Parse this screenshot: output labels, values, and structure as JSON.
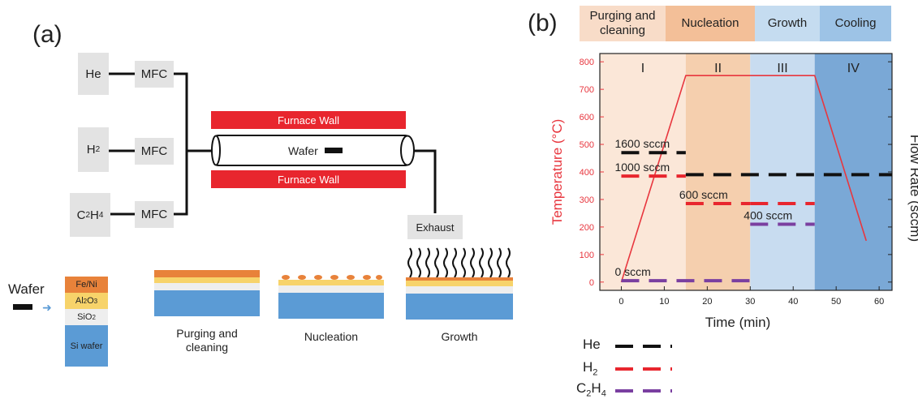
{
  "panel_a": {
    "label": "(a)",
    "gas_sources": [
      "He",
      "H2",
      "C2H4"
    ],
    "mfc_label": "MFC",
    "furnace_wall_top": "Furnace Wall",
    "furnace_wall_bottom": "Furnace Wall",
    "wafer_in_tube": "Wafer",
    "exhaust": "Exhaust"
  },
  "wafer_stack": {
    "label": "Wafer",
    "layers": [
      "Fe/Ni",
      "Al2O3",
      "SiO2",
      "Si wafer"
    ],
    "colors": {
      "feni": "#e8823a",
      "al2o3": "#f7d36a",
      "sio2": "#eeeeee",
      "si": "#5b9bd5"
    }
  },
  "stages": [
    "Purging and cleaning",
    "Nucleation",
    "Growth"
  ],
  "panel_b": {
    "label": "(b)",
    "phase_bar": [
      {
        "label": "Purging and cleaning",
        "color": "#f8dcc8"
      },
      {
        "label": "Nucleation",
        "color": "#f3bf98"
      },
      {
        "label": "Growth",
        "color": "#c5dcf0"
      },
      {
        "label": "Cooling",
        "color": "#9dc3e6"
      }
    ],
    "roman": [
      "I",
      "II",
      "III",
      "IV"
    ],
    "flow_labels": [
      "1600 sccm",
      "1000 sccm",
      "600 sccm",
      "400 sccm",
      "0 sccm"
    ],
    "legend": [
      "He",
      "H2",
      "C2H4"
    ]
  },
  "chart_data": {
    "type": "line",
    "xlabel": "Time (min)",
    "ylabel": "Temperature (°C)",
    "ylabel_right": "Flow Rate (sccm)",
    "xlim": [
      -5,
      63
    ],
    "ylim": [
      -30,
      830
    ],
    "xticks": [
      0,
      10,
      20,
      30,
      40,
      50,
      60
    ],
    "yticks": [
      0,
      100,
      200,
      300,
      400,
      500,
      600,
      700,
      800
    ],
    "regions": [
      {
        "label": "I",
        "x": [
          -5,
          15
        ],
        "color": "#fbe7d8"
      },
      {
        "label": "II",
        "x": [
          15,
          30
        ],
        "color": "#f5cfae"
      },
      {
        "label": "III",
        "x": [
          30,
          45
        ],
        "color": "#c8dcf0"
      },
      {
        "label": "IV",
        "x": [
          45,
          63
        ],
        "color": "#7aa8d6"
      }
    ],
    "temperature": {
      "color": "#e8363e",
      "x": [
        0,
        15,
        45,
        57
      ],
      "y": [
        0,
        750,
        750,
        150
      ]
    },
    "flow_series": [
      {
        "name": "He",
        "color": "#111111",
        "segments": [
          {
            "x": [
              0,
              15
            ],
            "y": 470,
            "label": "1600 sccm"
          },
          {
            "x": [
              15,
              63
            ],
            "y": 390,
            "label": ""
          }
        ]
      },
      {
        "name": "H2",
        "color": "#e8262e",
        "segments": [
          {
            "x": [
              0,
              15
            ],
            "y": 385,
            "label": "1000 sccm"
          },
          {
            "x": [
              15,
              30
            ],
            "y": 285,
            "label": "600 sccm"
          },
          {
            "x": [
              30,
              45
            ],
            "y": 285,
            "label": ""
          }
        ]
      },
      {
        "name": "C2H4",
        "color": "#7a3fa0",
        "segments": [
          {
            "x": [
              0,
              30
            ],
            "y": 5,
            "label": "0 sccm"
          },
          {
            "x": [
              30,
              45
            ],
            "y": 210,
            "label": "400 sccm"
          }
        ]
      }
    ]
  }
}
